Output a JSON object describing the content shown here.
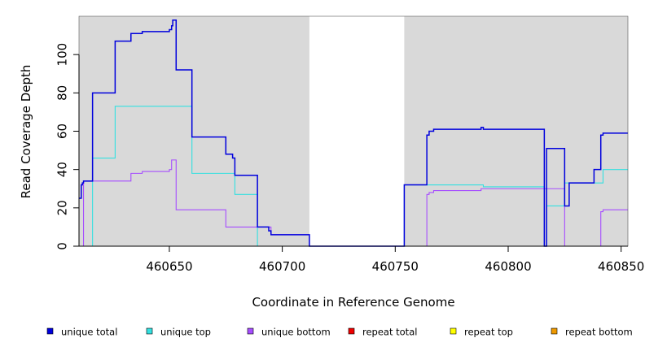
{
  "chart_data": {
    "type": "line",
    "step": true,
    "xlabel": "Coordinate in Reference Genome",
    "ylabel": "Read Coverage Depth",
    "xlim": [
      460610,
      460853
    ],
    "ylim": [
      0,
      120
    ],
    "x_ticks": [
      460650,
      460700,
      460750,
      460800,
      460850
    ],
    "y_ticks": [
      0,
      20,
      40,
      60,
      80,
      100
    ],
    "x_tick_labels": [
      "460650",
      "460700",
      "460750",
      "460800",
      "460850"
    ],
    "y_tick_labels": [
      "0",
      "20",
      "40",
      "60",
      "80",
      "100"
    ],
    "grid": false,
    "background": "#d9d9d9",
    "gap_regions": [
      [
        460712,
        460754
      ]
    ],
    "legend_position": "bottom",
    "series": [
      {
        "name": "unique total",
        "color": "#0000dd",
        "points": [
          [
            460610,
            25
          ],
          [
            460611,
            32
          ],
          [
            460611.5,
            33
          ],
          [
            460612,
            34
          ],
          [
            460616,
            80
          ],
          [
            460626,
            107
          ],
          [
            460633,
            111
          ],
          [
            460638,
            112
          ],
          [
            460650,
            113
          ],
          [
            460651,
            115
          ],
          [
            460651.5,
            118
          ],
          [
            460653,
            92
          ],
          [
            460660,
            57
          ],
          [
            460675,
            48
          ],
          [
            460678,
            46
          ],
          [
            460679,
            37
          ],
          [
            460689,
            10
          ],
          [
            460694,
            8
          ],
          [
            460695,
            6
          ],
          [
            460712,
            0
          ],
          [
            460754,
            32
          ],
          [
            460764,
            58
          ],
          [
            460765,
            60
          ],
          [
            460767,
            61
          ],
          [
            460788,
            62
          ],
          [
            460789,
            61
          ],
          [
            460816,
            0
          ],
          [
            460817,
            51
          ],
          [
            460825,
            21
          ],
          [
            460827,
            33
          ],
          [
            460838,
            40
          ],
          [
            460841,
            58
          ],
          [
            460842,
            59
          ],
          [
            460853,
            59
          ]
        ]
      },
      {
        "name": "unique top",
        "color": "#33e0e0",
        "points": [
          [
            460610,
            0
          ],
          [
            460616,
            46
          ],
          [
            460626,
            73
          ],
          [
            460660,
            38
          ],
          [
            460679,
            27
          ],
          [
            460689,
            0
          ],
          [
            460754,
            32
          ],
          [
            460789,
            31
          ],
          [
            460816,
            0
          ],
          [
            460817,
            21
          ],
          [
            460825,
            33
          ],
          [
            460842,
            40
          ],
          [
            460853,
            40
          ]
        ]
      },
      {
        "name": "unique bottom",
        "color": "#a64dff",
        "points": [
          [
            460610,
            0
          ],
          [
            460612,
            34
          ],
          [
            460633,
            38
          ],
          [
            460638,
            39
          ],
          [
            460650,
            40
          ],
          [
            460651,
            45
          ],
          [
            460653,
            19
          ],
          [
            460675,
            10
          ],
          [
            460695,
            6
          ],
          [
            460712,
            0
          ],
          [
            460764,
            27
          ],
          [
            460765,
            28
          ],
          [
            460767,
            29
          ],
          [
            460788,
            30
          ],
          [
            460825,
            0
          ],
          [
            460841,
            18
          ],
          [
            460842,
            19
          ],
          [
            460853,
            19
          ]
        ]
      },
      {
        "name": "repeat total",
        "color": "#ee0000",
        "points": [
          [
            460610,
            0
          ],
          [
            460853,
            0
          ]
        ]
      },
      {
        "name": "repeat top",
        "color": "#ffff00",
        "points": [
          [
            460610,
            0
          ],
          [
            460853,
            0
          ]
        ]
      },
      {
        "name": "repeat bottom",
        "color": "#ee9900",
        "points": [
          [
            460610,
            0
          ],
          [
            460853,
            0
          ]
        ]
      }
    ]
  }
}
